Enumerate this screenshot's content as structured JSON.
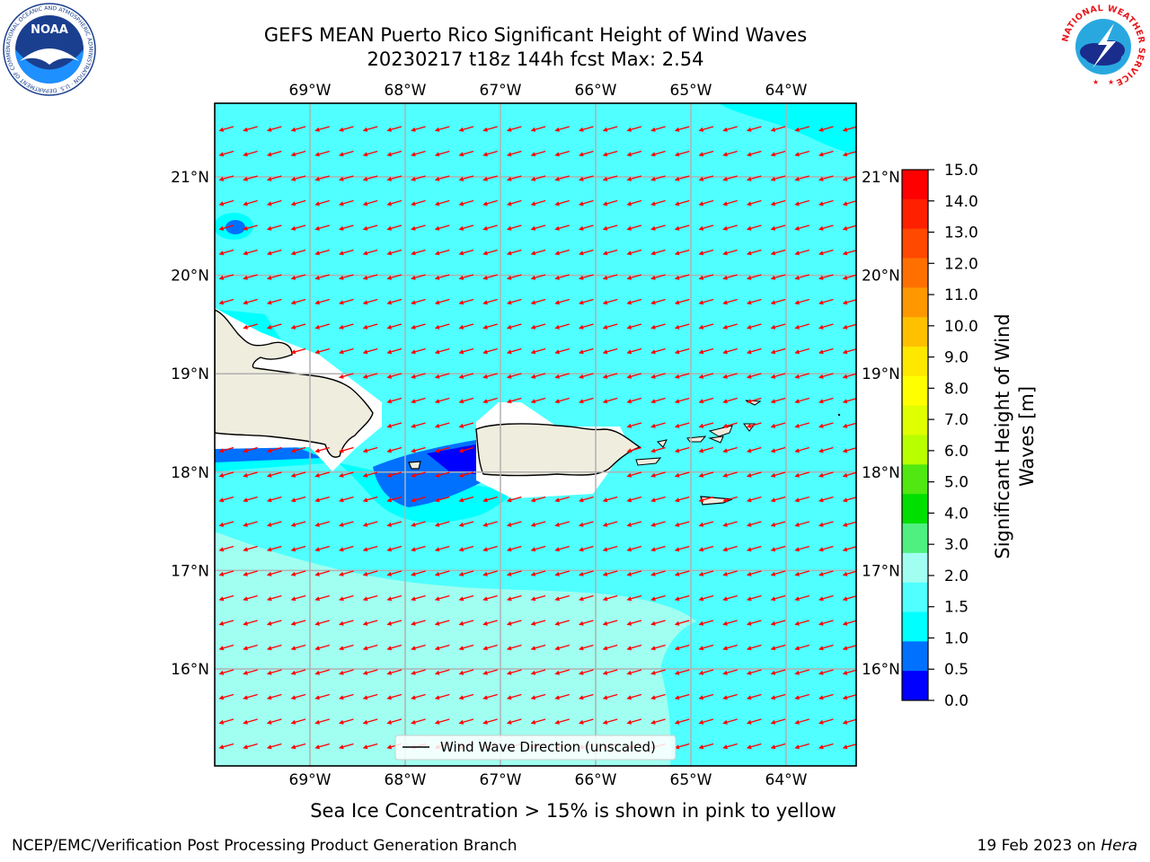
{
  "header": {
    "title_line1": "GEFS MEAN Puerto Rico Significant Height of Wind Waves",
    "title_line2": "20230217 t18z 144h fcst   Max: 2.54"
  },
  "logos": {
    "noaa_text": "NOAA",
    "noaa_ring_text": "NATIONAL OCEANIC AND ATMOSPHERIC ADMINISTRATION · U.S. DEPARTMENT OF COMMERCE",
    "nws_ring_text": "NATIONAL WEATHER SERVICE"
  },
  "map": {
    "lon_labels": [
      "69°W",
      "68°W",
      "67°W",
      "66°W",
      "65°W",
      "64°W"
    ],
    "lat_labels": [
      "21°N",
      "20°N",
      "19°N",
      "18°N",
      "17°N",
      "16°N"
    ],
    "lon_values": [
      -69,
      -68,
      -67,
      -66,
      -65,
      -64
    ],
    "lat_values": [
      21,
      20,
      19,
      18,
      17,
      16
    ],
    "legend_label": "Wind Wave Direction (unscaled)",
    "land_color": "#efedde",
    "coast_color": "#000000",
    "arrow_color": "#ff0000"
  },
  "colorbar": {
    "label": "Significant Height of Wind Waves [m]",
    "label_line1": "Significant Height of Wind",
    "label_line2": "Waves [m]",
    "ticks": [
      "15.0",
      "14.0",
      "13.0",
      "12.0",
      "11.0",
      "10.0",
      "9.0",
      "8.0",
      "7.0",
      "6.0",
      "5.0",
      "4.0",
      "3.0",
      "2.0",
      "1.5",
      "1.0",
      "0.5",
      "0.0"
    ],
    "colors_top_to_bottom": [
      "#ff0000",
      "#ff2000",
      "#ff4800",
      "#ff7000",
      "#ff9800",
      "#ffc000",
      "#ffe800",
      "#ffff00",
      "#e0ff00",
      "#b8ff00",
      "#50e810",
      "#00e000",
      "#50f080",
      "#a0fff0",
      "#50ffff",
      "#00ffff",
      "#0070ff",
      "#0000ff"
    ]
  },
  "footer": {
    "caption": "Sea Ice Concentration > 15% is shown in pink to yellow",
    "credit": "NCEP/EMC/Verification Post Processing Product Generation Branch",
    "date_prefix": "19 Feb 2023 on ",
    "date_host": "Hera"
  }
}
